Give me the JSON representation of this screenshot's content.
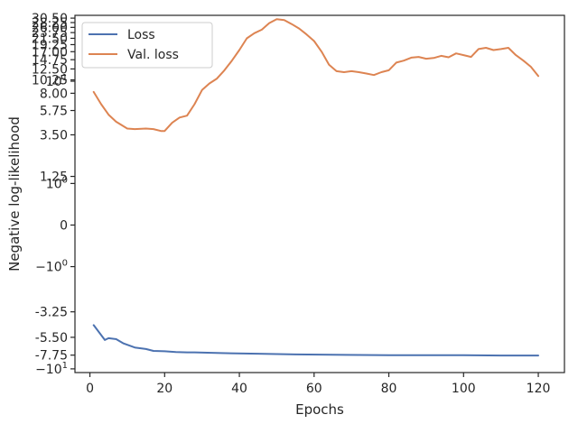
{
  "chart_data": {
    "type": "line",
    "title": "",
    "xlabel": "Epochs",
    "ylabel": "Negative log-likelihood",
    "yscale": "symlog",
    "xlim": [
      -4,
      127
    ],
    "ylim": [
      -10.7,
      32
    ],
    "x_ticks": [
      0,
      20,
      40,
      60,
      80,
      100,
      120
    ],
    "y_ticks": [
      {
        "value": 30.5,
        "label": "30.50"
      },
      {
        "value": 28.25,
        "label": "28.25"
      },
      {
        "value": 26.0,
        "label": "26.00"
      },
      {
        "value": 23.75,
        "label": "23.75"
      },
      {
        "value": 21.5,
        "label": "21.50"
      },
      {
        "value": 19.25,
        "label": "19.25"
      },
      {
        "value": 17.0,
        "label": "17.00"
      },
      {
        "value": 14.75,
        "label": "14.75"
      },
      {
        "value": 12.5,
        "label": "12.50"
      },
      {
        "value": 10.25,
        "label": "10.25"
      },
      {
        "value": 10,
        "label": "10",
        "sup": "1"
      },
      {
        "value": 8.0,
        "label": "8.00"
      },
      {
        "value": 5.75,
        "label": "5.75"
      },
      {
        "value": 3.5,
        "label": "3.50"
      },
      {
        "value": 1.25,
        "label": "1.25"
      },
      {
        "value": 1,
        "label": "10",
        "sup": "0"
      },
      {
        "value": 0,
        "label": "0"
      },
      {
        "value": -1,
        "label": "−10",
        "sup": "0"
      },
      {
        "value": -3.25,
        "label": "-3.25"
      },
      {
        "value": -5.5,
        "label": "-5.50"
      },
      {
        "value": -7.75,
        "label": "-7.75"
      },
      {
        "value": -10,
        "label": "−10",
        "sup": "1"
      }
    ],
    "legend_position": "top-left",
    "series": [
      {
        "name": "Loss",
        "color": "#4c72b0",
        "x": [
          1,
          4,
          5,
          7,
          9,
          12,
          15,
          17,
          20,
          23,
          26,
          28,
          35,
          45,
          55,
          65,
          80,
          100,
          110,
          120
        ],
        "y": [
          -4.3,
          -5.8,
          -5.6,
          -5.7,
          -6.2,
          -6.7,
          -6.9,
          -7.15,
          -7.2,
          -7.3,
          -7.35,
          -7.35,
          -7.45,
          -7.55,
          -7.65,
          -7.7,
          -7.75,
          -7.75,
          -7.8,
          -7.8
        ]
      },
      {
        "name": "Val. loss",
        "color": "#dd8452",
        "x": [
          1,
          3,
          5,
          7,
          10,
          12,
          15,
          17,
          19,
          20,
          22,
          24,
          26,
          28,
          30,
          32,
          34,
          36,
          38,
          40,
          42,
          44,
          46,
          48,
          50,
          52,
          54,
          56,
          58,
          60,
          62,
          64,
          66,
          68,
          70,
          72,
          74,
          76,
          78,
          80,
          82,
          84,
          86,
          88,
          90,
          92,
          94,
          96,
          98,
          100,
          102,
          104,
          106,
          108,
          110,
          112,
          114,
          116,
          118,
          120
        ],
        "y": [
          8.2,
          6.5,
          5.3,
          4.6,
          4.0,
          3.95,
          4.0,
          3.95,
          3.8,
          3.8,
          4.5,
          5.0,
          5.2,
          6.5,
          8.5,
          9.6,
          10.5,
          12.2,
          14.5,
          17.5,
          21.5,
          23.5,
          25.0,
          28.0,
          30.0,
          29.5,
          27.5,
          25.5,
          23.0,
          20.5,
          17.0,
          13.5,
          12.0,
          11.8,
          12.0,
          11.8,
          11.5,
          11.2,
          11.8,
          12.2,
          14.0,
          14.5,
          15.3,
          15.5,
          15.0,
          15.2,
          15.8,
          15.4,
          16.5,
          16.0,
          15.5,
          17.8,
          18.2,
          17.5,
          17.8,
          18.2,
          16.0,
          14.5,
          13.0,
          11.0
        ]
      }
    ]
  }
}
